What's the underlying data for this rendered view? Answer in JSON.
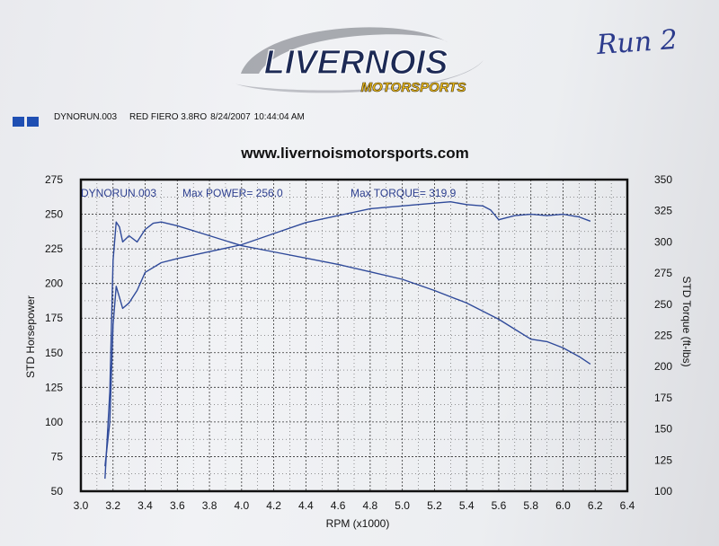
{
  "brand": {
    "logo_main": "LIVERNOIS",
    "logo_sub": "MOTORSPORTS"
  },
  "handwritten_note": "Run 2",
  "run_info": {
    "file": "DYNORUN.003",
    "vehicle": "RED FIERO 3.8RO",
    "date": "8/24/2007",
    "time": "10:44:04 AM"
  },
  "website": "www.livernoismotorsports.com",
  "colors": {
    "curve": "#2f4a9a",
    "frame": "#111111",
    "grid": "#333333",
    "swatch": "#1f4fb3"
  },
  "chart_data": {
    "type": "line",
    "xlabel": "RPM (x1000)",
    "ylabel": "STD Horsepower",
    "y2label": "STD Torque (ft-lbs)",
    "xlim": [
      3.0,
      6.4
    ],
    "ylim": [
      50,
      275
    ],
    "y2lim": [
      100,
      350
    ],
    "xticks": [
      "3.0",
      "3.2",
      "3.4",
      "3.6",
      "3.8",
      "4.0",
      "4.2",
      "4.4",
      "4.6",
      "4.8",
      "5.0",
      "5.2",
      "5.4",
      "5.6",
      "5.8",
      "6.0",
      "6.2",
      "6.4"
    ],
    "yticks": [
      "50",
      "75",
      "100",
      "125",
      "150",
      "175",
      "200",
      "225",
      "250",
      "275"
    ],
    "y2ticks": [
      "100",
      "125",
      "150",
      "175",
      "200",
      "225",
      "250",
      "275",
      "300",
      "325",
      "350"
    ],
    "grid": true,
    "annotations": {
      "run": "DYNORUN.003",
      "max_power": "Max POWER= 256.0",
      "max_torque": "Max TORQUE= 319.9"
    },
    "series": [
      {
        "axis": "left",
        "x": [
          3.15,
          3.18,
          3.2,
          3.22,
          3.24,
          3.26,
          3.3,
          3.35,
          3.4,
          3.5,
          3.6,
          3.8,
          4.0,
          4.2,
          4.4,
          4.6,
          4.8,
          5.0,
          5.2,
          5.3,
          5.4,
          5.5,
          5.55,
          5.6,
          5.7,
          5.8,
          5.9,
          6.0,
          6.1,
          6.17
        ],
        "y": [
          68,
          100,
          170,
          198,
          190,
          182,
          186,
          195,
          208,
          215,
          218,
          223,
          228,
          236,
          244,
          249,
          254,
          256,
          258,
          259,
          257,
          256,
          253,
          246,
          249,
          250,
          249,
          250,
          248,
          245
        ]
      },
      {
        "axis": "right",
        "x": [
          3.15,
          3.18,
          3.2,
          3.22,
          3.24,
          3.26,
          3.3,
          3.35,
          3.4,
          3.45,
          3.5,
          3.6,
          3.8,
          4.0,
          4.2,
          4.4,
          4.6,
          4.8,
          5.0,
          5.2,
          5.4,
          5.6,
          5.7,
          5.8,
          5.9,
          6.0,
          6.1,
          6.17
        ],
        "y": [
          110,
          180,
          285,
          316,
          312,
          300,
          305,
          300,
          310,
          315,
          316,
          313,
          305,
          297,
          292,
          287,
          282,
          276,
          270,
          261,
          251,
          238,
          230,
          222,
          220,
          215,
          208,
          202
        ]
      }
    ]
  }
}
